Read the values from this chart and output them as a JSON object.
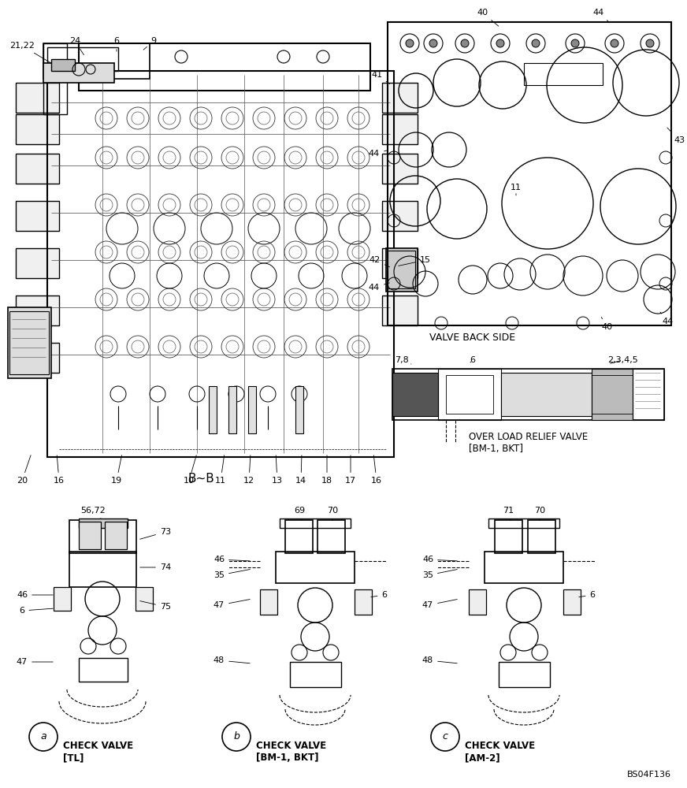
{
  "bg_color": "#ffffff",
  "line_color": "#000000",
  "fig_width": 8.72,
  "fig_height": 10.0,
  "dpi": 100,
  "title": "B~B",
  "valve_back_side_label": "VALVE BACK SIDE",
  "over_load_label": "OVER LOAD RELIEF VALVE\n[BM-1, BKT]",
  "check_a_label": "CHECK VALVE\n[TL]",
  "check_b_label": "CHECK VALVE\n[BM-1, BKT]",
  "check_c_label": "CHECK VALVE\n[AM-2]",
  "ref_code": "BS04F136"
}
